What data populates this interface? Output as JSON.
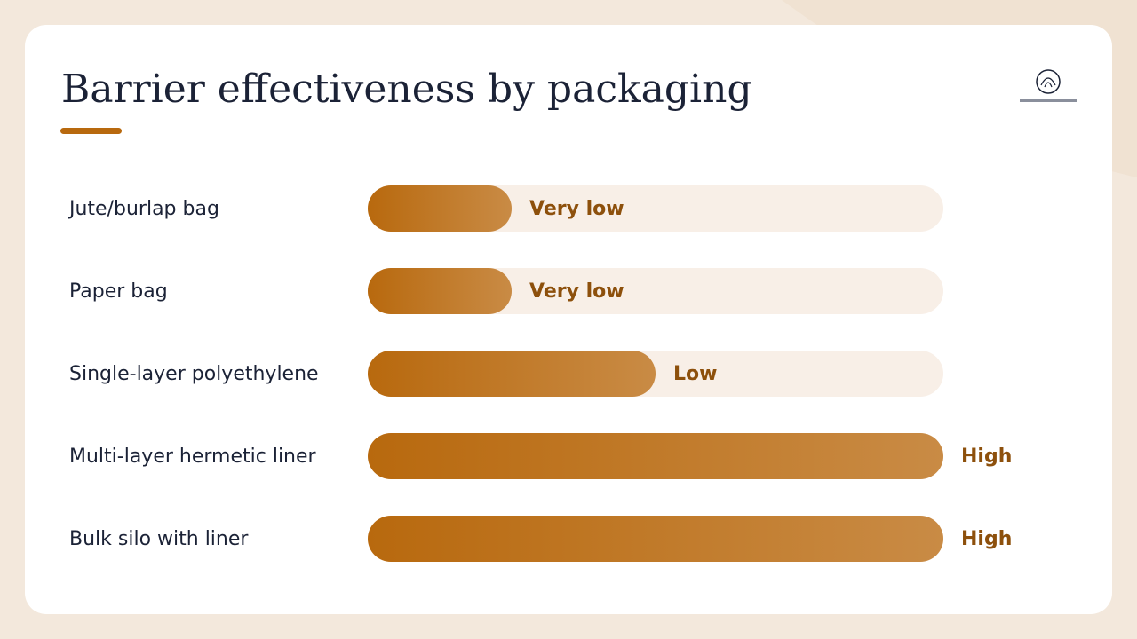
{
  "chart_data": {
    "type": "bar",
    "title": "Barrier effectiveness by packaging",
    "categories": [
      "Jute/burlap bag",
      "Paper bag",
      "Single-layer polyethylene",
      "Multi-layer hermetic liner",
      "Bulk silo with liner"
    ],
    "values": [
      25,
      25,
      50,
      100,
      100
    ],
    "value_labels": [
      "Very low",
      "Very low",
      "Low",
      "High",
      "High"
    ],
    "color": "#b8690e",
    "xlim": [
      0,
      100
    ]
  }
}
